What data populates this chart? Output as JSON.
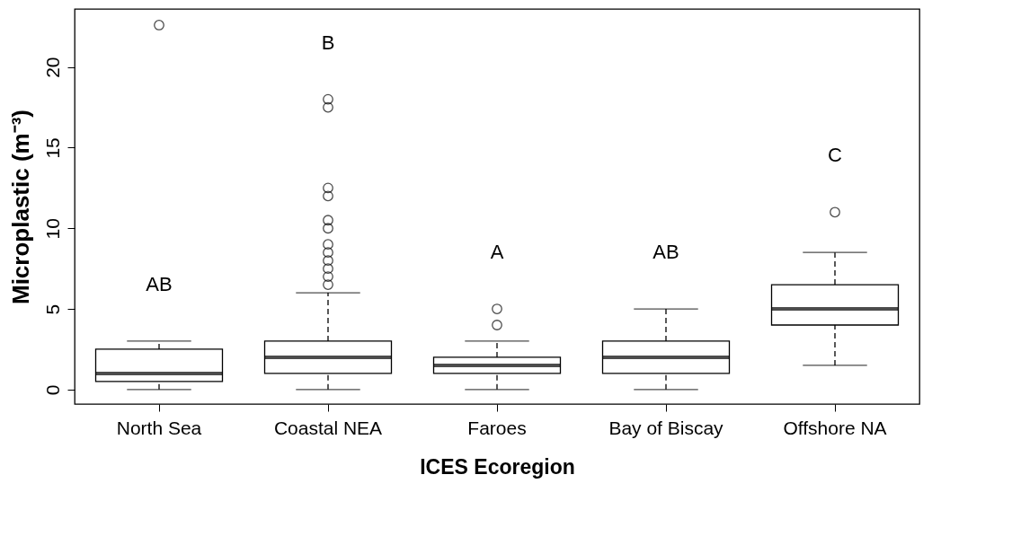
{
  "chart_data": {
    "type": "box",
    "xlabel": "ICES Ecoregion",
    "ylabel": "Microplastic (m⁻³)",
    "categories": [
      "North Sea",
      "Coastal NEA",
      "Faroes",
      "Bay of Biscay",
      "Offshore NA"
    ],
    "boxes": [
      {
        "low": 0,
        "q1": 0.5,
        "median": 1,
        "q3": 2.5,
        "high": 3,
        "outliers": [
          22.6
        ]
      },
      {
        "low": 0,
        "q1": 1,
        "median": 2,
        "q3": 3,
        "high": 6,
        "outliers": [
          6.5,
          7,
          7.5,
          8,
          8.5,
          9,
          10,
          10.5,
          12,
          12.5,
          17.5,
          18
        ]
      },
      {
        "low": 0,
        "q1": 1,
        "median": 1.5,
        "q3": 2,
        "high": 3,
        "outliers": [
          4,
          5
        ]
      },
      {
        "low": 0,
        "q1": 1,
        "median": 2,
        "q3": 3,
        "high": 5
      },
      {
        "low": 1.5,
        "q1": 4,
        "median": 5,
        "q3": 6.5,
        "high": 8.5,
        "outliers": [
          11
        ]
      }
    ],
    "ylim": [
      -0.9,
      23.6
    ],
    "yticks": [
      0,
      5,
      10,
      15,
      20
    ],
    "annotations": [
      "AB",
      "B",
      "A",
      "AB",
      "C"
    ]
  }
}
